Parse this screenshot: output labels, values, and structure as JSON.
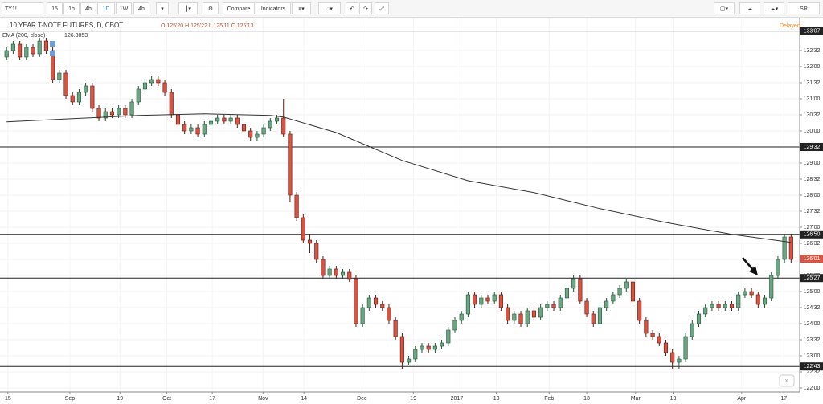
{
  "ui": {
    "toolbar": {
      "symbol": "TY1!",
      "intervals": [
        "15",
        "1h",
        "4h",
        "1D",
        "1W",
        "4h"
      ],
      "compare": "Compare",
      "indicators": "Indicators",
      "account": "SR"
    },
    "legend": {
      "title": "10 YEAR T-NOTE FUTURES, D, CBOT",
      "ohlc": "O 125'20 H 125'22 L 125'11 C 125'13",
      "indicator": "EMA (200, close)",
      "indicator_value": "126.3053",
      "status": "Delayed"
    }
  },
  "chart_data": {
    "type": "candlestick",
    "up_color": "#6ba583",
    "down_color": "#d75442",
    "up_border": "#225437",
    "down_border": "#5b1a13",
    "open": [
      132.3,
      132.5,
      132.7,
      132.3,
      132.6,
      132.4,
      132.8,
      132.5,
      131.6,
      131.8,
      131.1,
      130.9,
      131.2,
      131.4,
      130.7,
      130.4,
      130.6,
      130.5,
      130.7,
      130.5,
      130.9,
      131.3,
      131.5,
      131.6,
      131.5,
      131.2,
      130.5,
      130.2,
      130.0,
      130.1,
      129.9,
      130.2,
      130.3,
      130.4,
      130.3,
      130.4,
      130.2,
      130.0,
      129.8,
      129.9,
      130.1,
      130.3,
      130.4,
      129.9,
      128.0,
      127.3,
      126.6,
      126.5,
      126.0,
      125.5,
      125.7,
      125.5,
      125.6,
      125.4,
      124.0,
      124.5,
      124.8,
      124.6,
      124.5,
      124.1,
      123.6,
      122.8,
      122.9,
      123.2,
      123.3,
      123.2,
      123.3,
      123.4,
      123.8,
      124.1,
      124.3,
      124.9,
      124.6,
      124.8,
      124.7,
      124.9,
      124.5,
      124.1,
      124.3,
      124.0,
      124.4,
      124.2,
      124.5,
      124.6,
      124.5,
      124.8,
      125.1,
      125.4,
      124.7,
      124.3,
      124.0,
      124.5,
      124.7,
      124.9,
      125.1,
      125.3,
      124.7,
      124.1,
      123.7,
      123.6,
      123.4,
      123.1,
      122.8,
      122.9,
      123.6,
      124.0,
      124.3,
      124.5,
      124.6,
      124.5,
      124.6,
      124.5,
      124.9,
      125.0,
      124.9,
      124.6,
      124.8,
      125.5,
      126.0,
      126.7
    ],
    "high": [
      132.6,
      132.8,
      132.8,
      132.7,
      132.7,
      132.9,
      132.9,
      132.6,
      131.9,
      131.9,
      131.2,
      131.3,
      131.5,
      131.5,
      130.8,
      130.7,
      130.7,
      130.8,
      130.8,
      131.0,
      131.4,
      131.6,
      131.7,
      131.7,
      131.6,
      131.3,
      130.6,
      130.3,
      130.2,
      130.2,
      130.3,
      130.4,
      130.5,
      130.5,
      130.5,
      130.5,
      130.3,
      130.1,
      130.0,
      130.2,
      130.4,
      130.5,
      131.0,
      130.0,
      128.1,
      127.4,
      126.8,
      126.6,
      126.1,
      125.8,
      125.8,
      125.7,
      125.7,
      125.5,
      124.6,
      124.9,
      124.9,
      124.7,
      124.6,
      124.2,
      123.7,
      123.0,
      123.3,
      123.4,
      123.4,
      123.4,
      123.5,
      123.9,
      124.2,
      124.4,
      125.0,
      125.0,
      124.9,
      124.9,
      125.0,
      125.0,
      124.6,
      124.4,
      124.4,
      124.5,
      124.5,
      124.6,
      124.7,
      124.7,
      124.9,
      125.2,
      125.5,
      125.5,
      124.8,
      124.4,
      124.6,
      124.8,
      125.0,
      125.2,
      125.4,
      125.4,
      124.8,
      124.2,
      123.8,
      123.7,
      123.5,
      123.2,
      123.0,
      123.7,
      124.1,
      124.4,
      124.6,
      124.7,
      124.7,
      124.7,
      124.7,
      125.0,
      125.1,
      125.1,
      125.0,
      124.9,
      125.6,
      126.1,
      126.8,
      126.8
    ],
    "low": [
      132.2,
      132.4,
      132.2,
      132.2,
      132.3,
      132.3,
      132.4,
      131.5,
      131.5,
      131.0,
      130.8,
      130.8,
      131.1,
      130.6,
      130.3,
      130.3,
      130.4,
      130.4,
      130.4,
      130.4,
      130.8,
      131.2,
      131.4,
      131.4,
      131.1,
      130.4,
      130.1,
      129.9,
      129.9,
      129.8,
      129.8,
      130.1,
      130.2,
      130.2,
      130.2,
      130.1,
      129.9,
      129.7,
      129.7,
      129.8,
      130.0,
      130.2,
      129.8,
      127.8,
      127.2,
      126.5,
      126.2,
      125.9,
      125.4,
      125.4,
      125.4,
      125.4,
      125.3,
      123.9,
      123.9,
      124.4,
      124.5,
      124.4,
      124.0,
      123.5,
      122.6,
      122.7,
      122.8,
      123.1,
      123.1,
      123.1,
      123.2,
      123.3,
      123.7,
      124.0,
      124.2,
      124.5,
      124.5,
      124.6,
      124.6,
      124.4,
      124.0,
      124.0,
      123.9,
      123.9,
      124.1,
      124.1,
      124.4,
      124.4,
      124.4,
      124.7,
      125.0,
      124.6,
      124.2,
      123.9,
      123.9,
      124.4,
      124.6,
      124.8,
      125.0,
      124.6,
      124.0,
      123.6,
      123.5,
      123.3,
      123.0,
      122.6,
      122.6,
      122.8,
      123.5,
      123.9,
      124.2,
      124.4,
      124.4,
      124.4,
      124.4,
      124.4,
      124.8,
      124.8,
      124.5,
      124.5,
      124.7,
      125.4,
      125.9,
      125.9
    ],
    "close": [
      132.5,
      132.7,
      132.3,
      132.6,
      132.4,
      132.8,
      132.5,
      131.6,
      131.8,
      131.1,
      130.9,
      131.2,
      131.4,
      130.7,
      130.4,
      130.6,
      130.5,
      130.7,
      130.5,
      130.9,
      131.3,
      131.5,
      131.6,
      131.5,
      131.2,
      130.5,
      130.2,
      130.0,
      130.1,
      129.9,
      130.2,
      130.3,
      130.4,
      130.3,
      130.4,
      130.2,
      130.0,
      129.8,
      129.9,
      130.1,
      130.3,
      130.4,
      129.9,
      128.0,
      127.3,
      126.6,
      126.5,
      126.0,
      125.5,
      125.7,
      125.5,
      125.6,
      125.4,
      124.0,
      124.5,
      124.8,
      124.6,
      124.5,
      124.1,
      123.6,
      122.8,
      122.9,
      123.2,
      123.3,
      123.2,
      123.3,
      123.4,
      123.8,
      124.1,
      124.3,
      124.9,
      124.6,
      124.8,
      124.7,
      124.9,
      124.5,
      124.1,
      124.3,
      124.0,
      124.4,
      124.2,
      124.5,
      124.6,
      124.5,
      124.8,
      125.1,
      125.4,
      124.7,
      124.3,
      124.0,
      124.5,
      124.7,
      124.9,
      125.1,
      125.3,
      124.7,
      124.1,
      123.7,
      123.6,
      123.4,
      123.1,
      122.8,
      122.9,
      123.6,
      124.0,
      124.3,
      124.5,
      124.6,
      124.5,
      124.6,
      124.5,
      124.9,
      125.0,
      124.9,
      124.6,
      124.8,
      125.5,
      126.0,
      126.7,
      126.0
    ],
    "ema": {
      "color": "#333333",
      "x": [
        0,
        10,
        20,
        30,
        40,
        42,
        50,
        60,
        70,
        80,
        90,
        100,
        110,
        119
      ],
      "values": [
        130.28,
        130.38,
        130.48,
        130.53,
        130.48,
        130.43,
        129.95,
        129.08,
        128.45,
        128.08,
        127.58,
        127.15,
        126.78,
        126.53
      ]
    },
    "levels": [
      {
        "value": 133.11,
        "label": "133'07"
      },
      {
        "value": 129.5,
        "label": "129'32"
      },
      {
        "value": 126.78,
        "label": "126'50"
      },
      {
        "value": 125.42,
        "label": "125'27"
      },
      {
        "value": 122.67,
        "label": "122'43"
      }
    ],
    "last_price": {
      "value": 126.02,
      "label": "126'01",
      "color": "#d75442"
    },
    "xlim": [
      -1,
      120.3
    ],
    "xticks": [
      {
        "value": 0.2,
        "label": "15"
      },
      {
        "value": 9.6,
        "label": "Sep"
      },
      {
        "value": 17.2,
        "label": "19"
      },
      {
        "value": 24.3,
        "label": "Oct"
      },
      {
        "value": 31.2,
        "label": "17"
      },
      {
        "value": 38.9,
        "label": "Nov"
      },
      {
        "value": 45.1,
        "label": "14"
      },
      {
        "value": 53.9,
        "label": "Dec"
      },
      {
        "value": 61.7,
        "label": "19"
      },
      {
        "value": 68.3,
        "label": "2017"
      },
      {
        "value": 74.3,
        "label": "13"
      },
      {
        "value": 82.3,
        "label": "Feb"
      },
      {
        "value": 88,
        "label": "13"
      },
      {
        "value": 95.4,
        "label": "Mar"
      },
      {
        "value": 101.1,
        "label": "13"
      },
      {
        "value": 111.5,
        "label": "Apr"
      },
      {
        "value": 117.9,
        "label": "17"
      }
    ],
    "ylim": [
      121.875,
      133.525
    ],
    "yticks": [
      {
        "value": 122,
        "label": "122'00"
      },
      {
        "value": 122.5,
        "label": "122'32"
      },
      {
        "value": 123,
        "label": "123'00"
      },
      {
        "value": 123.5,
        "label": "123'32"
      },
      {
        "value": 124,
        "label": "124'00"
      },
      {
        "value": 124.5,
        "label": "124'32"
      },
      {
        "value": 125,
        "label": "125'00"
      },
      {
        "value": 125.5,
        "label": "125'32"
      },
      {
        "value": 126,
        "label": "126'00"
      },
      {
        "value": 126.5,
        "label": "126'32"
      },
      {
        "value": 127,
        "label": "127'00"
      },
      {
        "value": 127.5,
        "label": "127'32"
      },
      {
        "value": 128,
        "label": "128'00"
      },
      {
        "value": 128.5,
        "label": "128'32"
      },
      {
        "value": 129,
        "label": "129'00"
      },
      {
        "value": 129.5,
        "label": "129'32"
      },
      {
        "value": 130,
        "label": "130'00"
      },
      {
        "value": 130.5,
        "label": "130'32"
      },
      {
        "value": 131,
        "label": "131'00"
      },
      {
        "value": 131.5,
        "label": "131'32"
      },
      {
        "value": 132,
        "label": "132'00"
      },
      {
        "value": 132.5,
        "label": "132'32"
      }
    ],
    "grid": true
  }
}
